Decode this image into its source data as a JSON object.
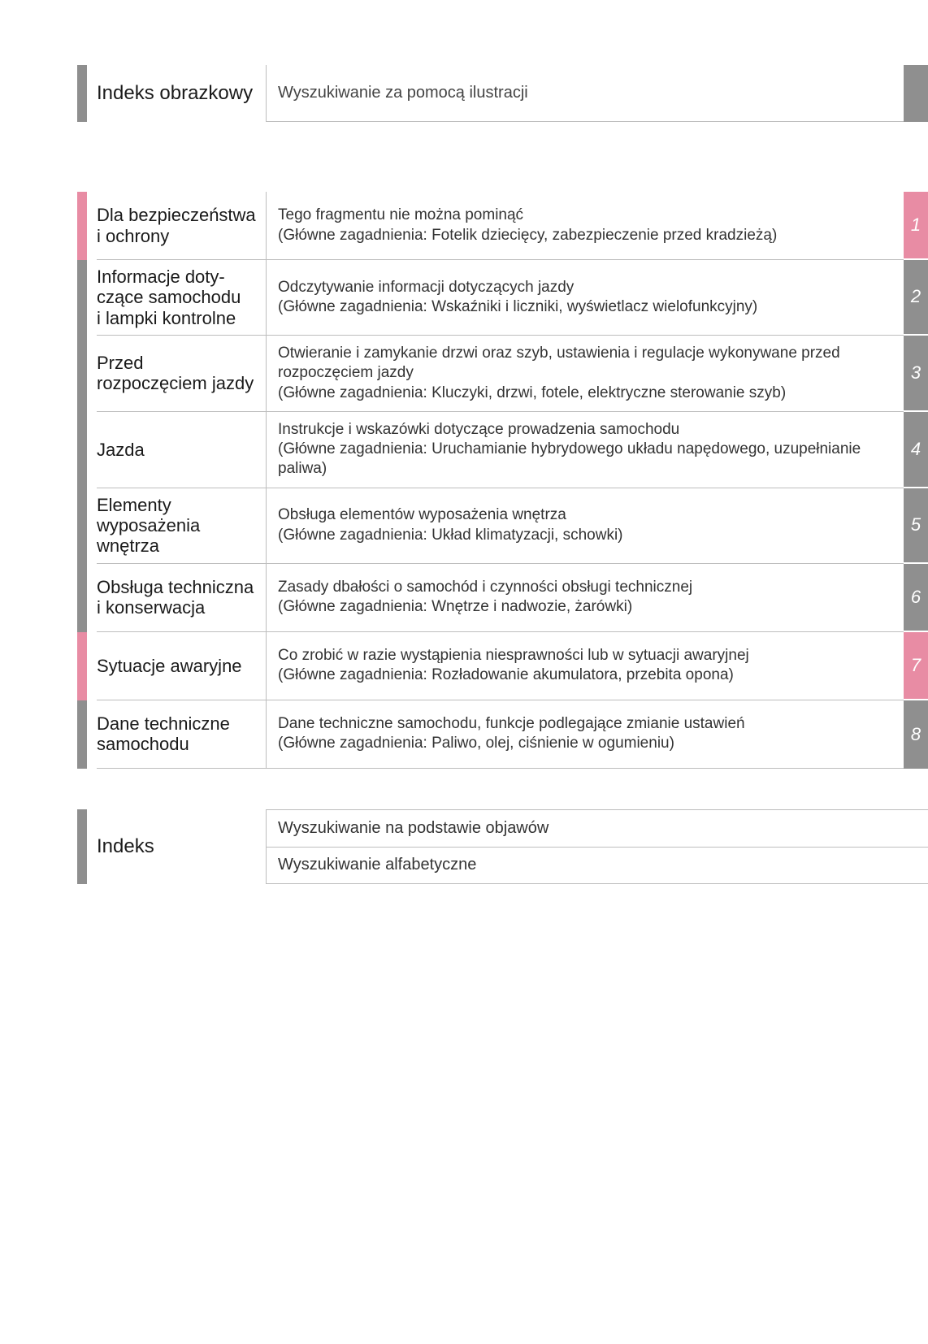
{
  "colors": {
    "grey": "#8f8f8f",
    "pink": "#e88ca4",
    "white": "#ffffff",
    "text": "#1a1a1a"
  },
  "header": {
    "title": "Indeks obrazkowy",
    "desc": "Wyszukiwanie za pomocą ilustracji"
  },
  "chapters": [
    {
      "num": "1",
      "title": "Dla bezpieczeństwa i ochrony",
      "desc": "Tego fragmentu nie można pominąć\n(Główne zagadnienia: Fotelik dziecięcy, zabezpieczenie przed kradzieżą)",
      "bar_color": "#e88ca4",
      "tab_color": "#e88ca4"
    },
    {
      "num": "2",
      "title": "Informacje doty­czące samochodu i lampki kontrolne",
      "desc": "Odczytywanie informacji dotyczących jazdy\n(Główne zagadnienia: Wskaźniki i liczniki, wyświetlacz wielofunkcyjny)",
      "bar_color": "#8f8f8f",
      "tab_color": "#8f8f8f"
    },
    {
      "num": "3",
      "title": "Przed rozpoczęciem jazdy",
      "desc": "Otwieranie i zamykanie drzwi oraz szyb, ustawienia i regulacje wykonywane przed rozpoczęciem jazdy\n(Główne zagadnienia: Kluczyki, drzwi, fotele, elektryczne sterowanie szyb)",
      "bar_color": "#8f8f8f",
      "tab_color": "#8f8f8f"
    },
    {
      "num": "4",
      "title": "Jazda",
      "desc": "Instrukcje i wskazówki dotyczące prowadzenia samochodu\n(Główne zagadnienia: Uruchamianie hybrydowego układu napędowego, uzupełnianie paliwa)",
      "bar_color": "#8f8f8f",
      "tab_color": "#8f8f8f"
    },
    {
      "num": "5",
      "title": "Elementy wyposażenia wnętrza",
      "desc": "Obsługa elementów wyposażenia wnętrza\n(Główne zagadnienia: Układ klimatyzacji, schowki)",
      "bar_color": "#8f8f8f",
      "tab_color": "#8f8f8f"
    },
    {
      "num": "6",
      "title": "Obsługa techniczna i konserwacja",
      "desc": "Zasady dbałości o samochód i czynności obsługi technicznej\n(Główne zagadnienia: Wnętrze i nadwozie, żarówki)",
      "bar_color": "#8f8f8f",
      "tab_color": "#8f8f8f"
    },
    {
      "num": "7",
      "title": "Sytuacje awaryjne",
      "desc": "Co zrobić w razie wystąpienia niesprawności lub w sytuacji awaryjnej\n(Główne zagadnienia: Rozładowanie akumulatora, przebita opona)",
      "bar_color": "#e88ca4",
      "tab_color": "#e88ca4"
    },
    {
      "num": "8",
      "title": "Dane techniczne samochodu",
      "desc": "Dane techniczne samochodu, funkcje podlegające zmianie ustawień\n(Główne zagadnienia: Paliwo, olej, ciśnienie w ogumieniu)",
      "bar_color": "#8f8f8f",
      "tab_color": "#8f8f8f"
    }
  ],
  "footer": {
    "title": "Indeks",
    "lines": [
      "Wyszukiwanie na podstawie objawów",
      "Wyszukiwanie alfabetyczne"
    ]
  }
}
